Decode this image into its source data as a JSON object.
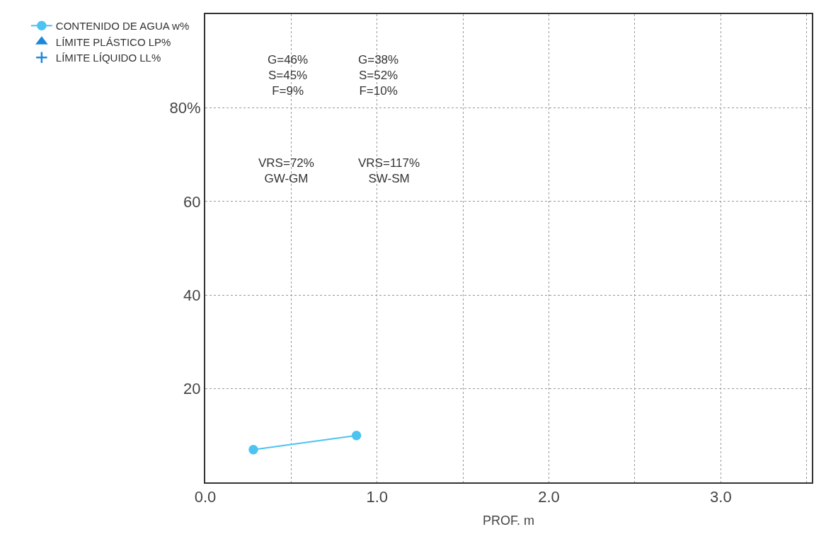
{
  "chart_data": {
    "type": "line",
    "xlabel": "PROF. m",
    "xlim": [
      0,
      3.53
    ],
    "xticks": [
      {
        "value": 0,
        "label": "0.0"
      },
      {
        "value": 0.5,
        "label": null
      },
      {
        "value": 1,
        "label": "1.0"
      },
      {
        "value": 1.5,
        "label": null
      },
      {
        "value": 2,
        "label": "2.0"
      },
      {
        "value": 2.5,
        "label": null
      },
      {
        "value": 3,
        "label": "3.0"
      },
      {
        "value": 3.5,
        "label": null
      }
    ],
    "ylim": [
      0,
      100
    ],
    "yticks": [
      20,
      40,
      60,
      {
        "value": 80,
        "label": "80%"
      }
    ],
    "series": [
      {
        "name": "CONTENIDO DE AGUA w%",
        "color": "#4cc3f0",
        "marker": "circle",
        "x": [
          0.28,
          0.88
        ],
        "values": [
          7,
          10
        ]
      },
      {
        "name": "LÍMITE PLÁSTICO LP%",
        "color": "#1e88d8",
        "marker": "triangle",
        "line_style": "none"
      },
      {
        "name": "LÍMITE LÍQUIDO LL%",
        "color": "#1e88d8",
        "marker": "cross",
        "line_style": "none"
      }
    ],
    "annotations": [
      "VRS=72%\nGW-GM",
      "G=46%\nS=45%\nF=9%",
      "VRS=117%\nSW-SM",
      "G=38%\nS=52%\nF=10%"
    ],
    "grid": true,
    "legend": "left"
  }
}
